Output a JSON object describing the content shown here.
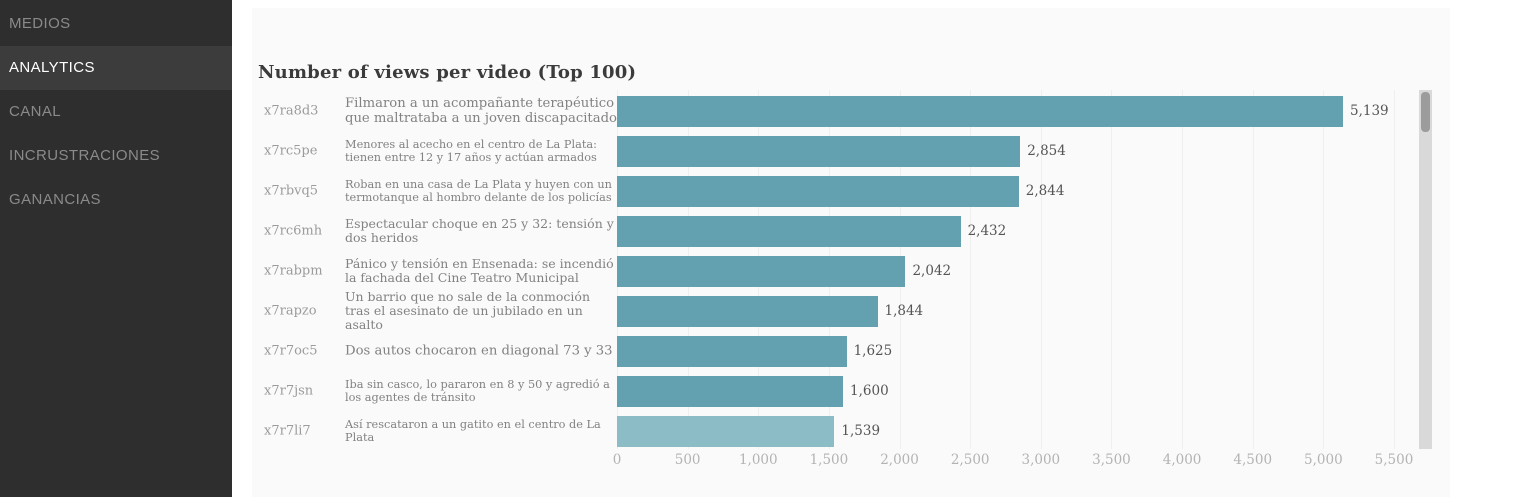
{
  "sidebar": {
    "items": [
      {
        "label": "MEDIOS",
        "active": false
      },
      {
        "label": "ANALYTICS",
        "active": true
      },
      {
        "label": "CANAL",
        "active": false
      },
      {
        "label": "INCRUSTRACIONES",
        "active": false
      },
      {
        "label": "GANANCIAS",
        "active": false
      }
    ]
  },
  "chart_data": {
    "type": "bar",
    "orientation": "horizontal",
    "title": "Number of views per video (Top 100)",
    "xlabel": "",
    "ylabel": "",
    "xlim": [
      0,
      5500
    ],
    "grid": true,
    "tick_labels": [
      "0",
      "500",
      "1,000",
      "1,500",
      "2,000",
      "2,500",
      "3,000",
      "3,500",
      "4,000",
      "4,500",
      "5,000",
      "5,500"
    ],
    "tick_values": [
      0,
      500,
      1000,
      1500,
      2000,
      2500,
      3000,
      3500,
      4000,
      4500,
      5000,
      5500
    ],
    "bar_color": "#63a1b0",
    "bar_color_highlight": "#8cbcc6",
    "rows": [
      {
        "id": "x7ra8d3",
        "title": "Filmaron a un acompañante terapéutico que maltrataba a un joven discapacitado",
        "value": 5139,
        "value_label": "5,139",
        "highlighted": false
      },
      {
        "id": "x7rc5pe",
        "title": "Menores al acecho en el centro de La Plata: tienen entre 12 y 17 años y actúan armados",
        "value": 2854,
        "value_label": "2,854",
        "highlighted": false
      },
      {
        "id": "x7rbvq5",
        "title": "Roban en una casa de La Plata y huyen con un termotanque al hombro delante de los policías",
        "value": 2844,
        "value_label": "2,844",
        "highlighted": false
      },
      {
        "id": "x7rc6mh",
        "title": "Espectacular choque en 25 y 32: tensión y dos heridos",
        "value": 2432,
        "value_label": "2,432",
        "highlighted": false
      },
      {
        "id": "x7rabpm",
        "title": "Pánico y tensión en Ensenada: se incendió la fachada del Cine Teatro Municipal",
        "value": 2042,
        "value_label": "2,042",
        "highlighted": false
      },
      {
        "id": "x7rapzo",
        "title": "Un barrio que no sale de la conmoción tras el asesinato de un jubilado en un asalto",
        "value": 1844,
        "value_label": "1,844",
        "highlighted": false
      },
      {
        "id": "x7r7oc5",
        "title": "Dos autos chocaron en diagonal 73 y 33",
        "value": 1625,
        "value_label": "1,625",
        "highlighted": false
      },
      {
        "id": "x7r7jsn",
        "title": "Iba sin casco, lo pararon en 8 y 50 y agredió a los agentes de tránsito",
        "value": 1600,
        "value_label": "1,600",
        "highlighted": false
      },
      {
        "id": "x7r7li7",
        "title": "Así rescataron a un gatito en el centro de La Plata",
        "value": 1539,
        "value_label": "1,539",
        "highlighted": true
      }
    ]
  },
  "colors": {
    "sidebar_bg": "#2e2e2e",
    "sidebar_active_bg": "#3c3c3c",
    "panel_bg": "#fafafa",
    "bar": "#63a1b0",
    "bar_highlight": "#8cbcc6"
  }
}
